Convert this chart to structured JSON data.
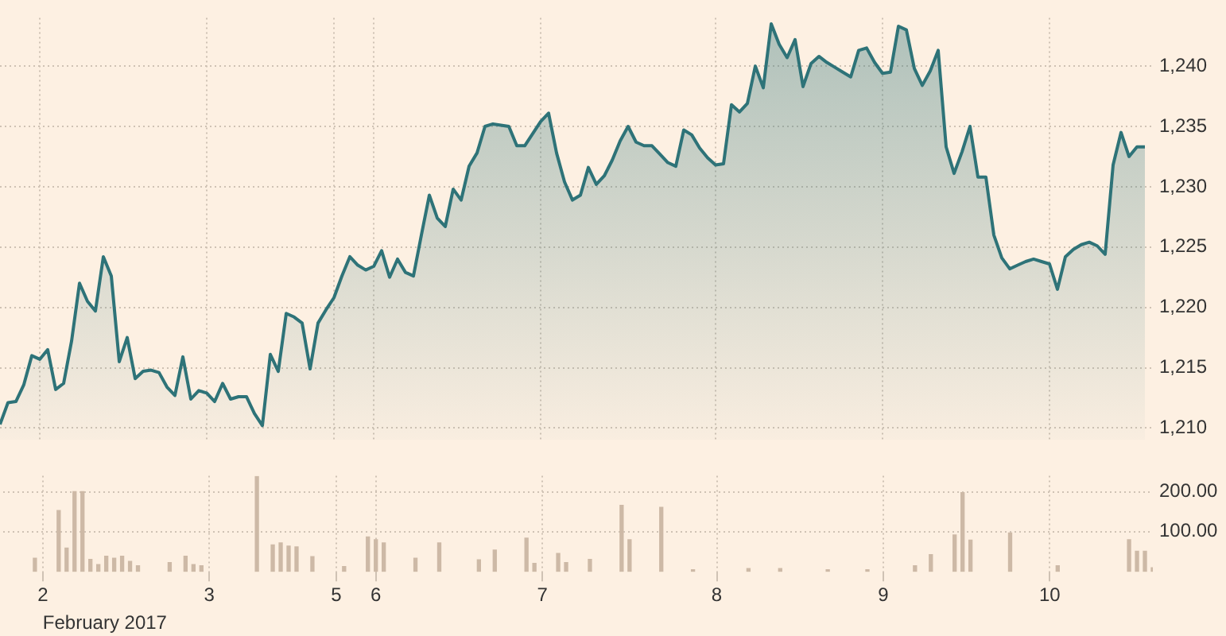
{
  "chart_data": [
    {
      "type": "area",
      "categories": [
        null,
        null,
        null,
        null,
        null,
        "2",
        null,
        null,
        null,
        null,
        null,
        null,
        null,
        null,
        null,
        null,
        null,
        null,
        null,
        null,
        null,
        null,
        null,
        null,
        null,
        null,
        "3",
        null,
        null,
        null,
        null,
        null,
        null,
        null,
        null,
        null,
        null,
        null,
        null,
        null,
        null,
        null,
        "5",
        null,
        null,
        null,
        null,
        "6",
        null,
        null,
        null,
        null,
        null,
        null,
        null,
        null,
        null,
        null,
        null,
        null,
        null,
        null,
        null,
        null,
        null,
        null,
        null,
        null,
        "7",
        null,
        null,
        null,
        null,
        null,
        null,
        null,
        null,
        null,
        null,
        null,
        null,
        null,
        null,
        null,
        null,
        null,
        null,
        null,
        null,
        null,
        "8",
        null,
        null,
        null,
        null,
        null,
        null,
        null,
        null,
        null,
        null,
        null,
        null,
        null,
        null,
        null,
        null,
        null,
        null,
        null,
        null,
        "9",
        null,
        null,
        null,
        null,
        null,
        null,
        null,
        null,
        null,
        null,
        null,
        null,
        null,
        null,
        null,
        null,
        null,
        null,
        null,
        null,
        "10",
        null,
        null,
        null,
        null,
        null,
        null,
        null,
        null,
        null,
        null,
        null,
        null,
        null
      ],
      "ylim": [
        1209,
        1244
      ],
      "yticks": [
        {
          "value": 1210,
          "label": "1,210"
        },
        {
          "value": 1215,
          "label": "1,215"
        },
        {
          "value": 1220,
          "label": "1,220"
        },
        {
          "value": 1225,
          "label": "1,225"
        },
        {
          "value": 1230,
          "label": "1,230"
        },
        {
          "value": 1235,
          "label": "1,235"
        },
        {
          "value": 1240,
          "label": "1,240"
        }
      ],
      "grid": true,
      "tick_labels": "y",
      "series": [
        {
          "color": "#2e7378",
          "values": [
            1210.3,
            1212.1,
            1212.2,
            1213.6,
            1216.0,
            1215.7,
            1216.5,
            1213.2,
            1213.7,
            1217.2,
            1222.0,
            1220.5,
            1219.7,
            1224.2,
            1222.6,
            1215.5,
            1217.5,
            1214.1,
            1214.7,
            1214.8,
            1214.6,
            1213.4,
            1212.7,
            1215.9,
            1212.4,
            1213.1,
            1212.9,
            1212.2,
            1213.7,
            1212.4,
            1212.6,
            1212.6,
            1211.2,
            1210.2,
            1216.1,
            1214.7,
            1219.5,
            1219.2,
            1218.7,
            1214.9,
            1218.7,
            1219.8,
            1220.8,
            1222.6,
            1224.2,
            1223.5,
            1223.1,
            1223.4,
            1224.7,
            1222.5,
            1224.0,
            1222.9,
            1222.6,
            1226.0,
            1229.3,
            1227.4,
            1226.7,
            1229.8,
            1228.9,
            1231.7,
            1232.8,
            1235.0,
            1235.2,
            1235.1,
            1235.0,
            1233.4,
            1233.4,
            1234.4,
            1235.4,
            1236.1,
            1232.8,
            1230.4,
            1228.9,
            1229.3,
            1231.6,
            1230.2,
            1230.9,
            1232.2,
            1233.8,
            1235.0,
            1233.7,
            1233.4,
            1233.4,
            1232.7,
            1232.0,
            1231.7,
            1234.7,
            1234.3,
            1233.2,
            1232.4,
            1231.8,
            1231.9,
            1236.8,
            1236.2,
            1236.9,
            1240.0,
            1238.2,
            1243.5,
            1241.8,
            1240.7,
            1242.2,
            1238.3,
            1240.2,
            1240.8,
            1240.3,
            1239.9,
            1239.5,
            1239.1,
            1241.3,
            1241.5,
            1240.3,
            1239.4,
            1239.5,
            1243.3,
            1243.0,
            1239.8,
            1238.4,
            1239.6,
            1241.3,
            1233.3,
            1231.1,
            1232.9,
            1235.0,
            1230.8,
            1230.8,
            1226.0,
            1224.1,
            1223.2,
            1223.5,
            1223.8,
            1224.0,
            1223.8,
            1223.6,
            1221.5,
            1224.2,
            1224.8,
            1225.2,
            1225.4,
            1225.1,
            1224.4,
            1231.8,
            1234.5,
            1232.5,
            1233.3,
            1233.3,
            null
          ]
        }
      ]
    },
    {
      "type": "bar",
      "categories": [
        null,
        null,
        null,
        null,
        null,
        "2",
        null,
        null,
        null,
        null,
        null,
        null,
        null,
        null,
        null,
        null,
        null,
        null,
        null,
        null,
        null,
        null,
        null,
        null,
        null,
        null,
        "3",
        null,
        null,
        null,
        null,
        null,
        null,
        null,
        null,
        null,
        null,
        null,
        null,
        null,
        null,
        null,
        "5",
        null,
        null,
        null,
        null,
        "6",
        null,
        null,
        null,
        null,
        null,
        null,
        null,
        null,
        null,
        null,
        null,
        null,
        null,
        null,
        null,
        null,
        null,
        null,
        null,
        null,
        "7",
        null,
        null,
        null,
        null,
        null,
        null,
        null,
        null,
        null,
        null,
        null,
        null,
        null,
        null,
        null,
        null,
        null,
        null,
        null,
        null,
        null,
        "8",
        null,
        null,
        null,
        null,
        null,
        null,
        null,
        null,
        null,
        null,
        null,
        null,
        null,
        null,
        null,
        null,
        null,
        null,
        null,
        null,
        "9",
        null,
        null,
        null,
        null,
        null,
        null,
        null,
        null,
        null,
        null,
        null,
        null,
        null,
        null,
        null,
        null,
        null,
        null,
        null,
        null,
        "10",
        null,
        null,
        null,
        null,
        null,
        null,
        null,
        null,
        null,
        null,
        null,
        null,
        null
      ],
      "ylim": [
        0,
        240
      ],
      "yticks": [
        {
          "value": 100,
          "label": "100.00"
        },
        {
          "value": 200,
          "label": "200.00"
        }
      ],
      "grid": true,
      "annotations": [
        "February 2017"
      ],
      "series": [
        {
          "color": "#cdb9a6",
          "values": [
            null,
            null,
            null,
            null,
            34,
            null,
            null,
            153,
            59,
            200,
            200,
            31,
            18,
            39,
            34,
            39,
            26,
            15,
            null,
            null,
            null,
            23,
            null,
            39,
            18,
            15,
            null,
            null,
            null,
            null,
            null,
            null,
            238,
            null,
            67,
            72,
            64,
            62,
            null,
            38,
            null,
            null,
            null,
            13,
            null,
            null,
            87,
            80,
            72,
            null,
            null,
            null,
            34,
            null,
            null,
            72,
            null,
            null,
            null,
            null,
            30,
            null,
            54,
            null,
            null,
            null,
            84,
            21,
            null,
            null,
            46,
            23,
            null,
            null,
            31,
            null,
            null,
            null,
            166,
            80,
            null,
            null,
            null,
            161,
            null,
            null,
            null,
            5,
            null,
            null,
            null,
            null,
            null,
            null,
            8,
            null,
            null,
            null,
            8,
            null,
            null,
            null,
            null,
            null,
            5,
            null,
            null,
            null,
            null,
            5,
            null,
            null,
            null,
            null,
            null,
            15,
            null,
            43,
            null,
            null,
            92,
            198,
            79,
            null,
            null,
            null,
            null,
            97,
            null,
            null,
            null,
            null,
            null,
            15,
            null,
            null,
            null,
            null,
            null,
            null,
            null,
            null,
            80,
            51,
            51,
            10
          ]
        }
      ]
    }
  ]
}
